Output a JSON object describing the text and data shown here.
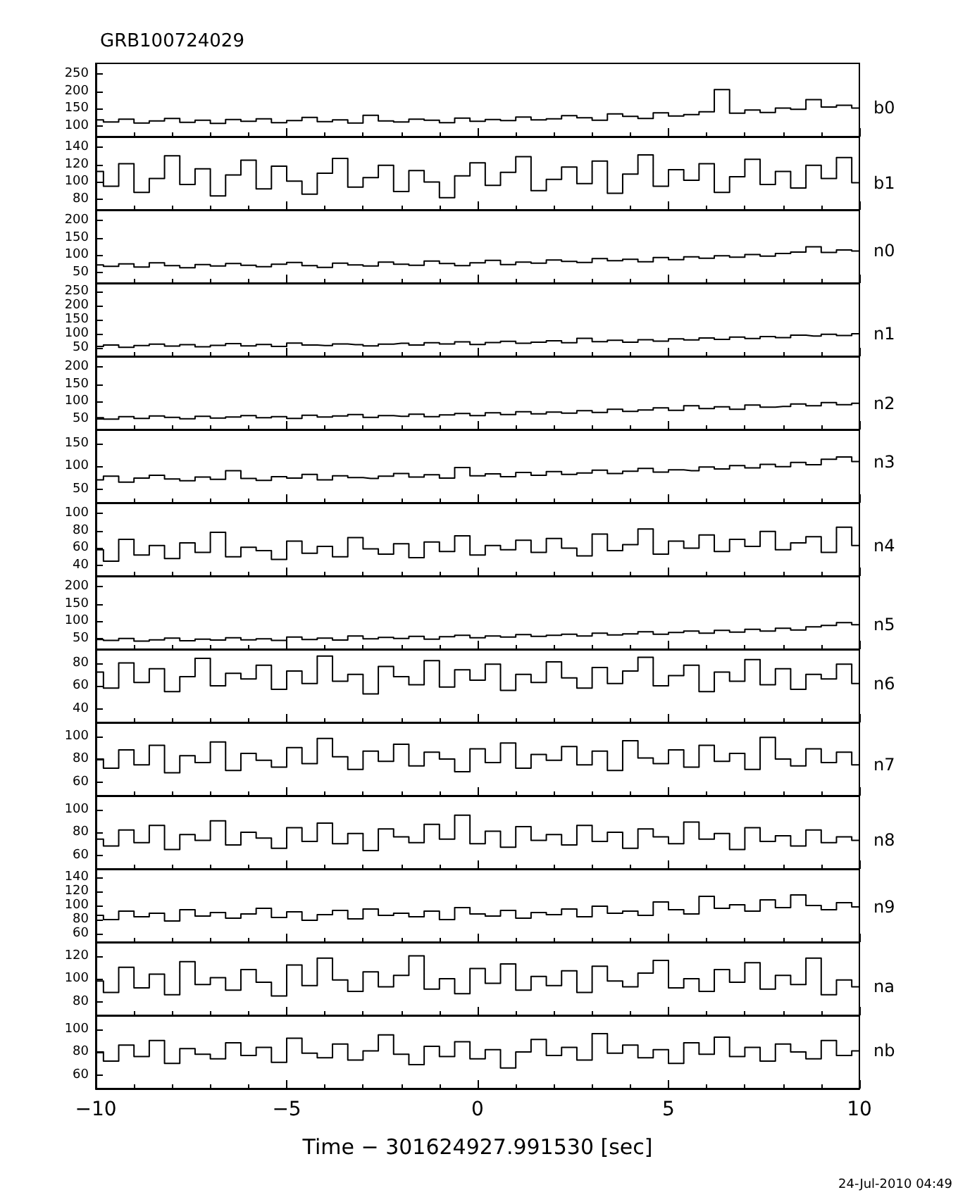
{
  "chart_data": [
    {
      "type": "step",
      "title": "GRB100724029",
      "x": [
        -10,
        -9.6,
        -9.2,
        -8.8,
        -8.4,
        -8,
        -7.6,
        -7.2,
        -6.8,
        -6.4,
        -6,
        -5.6,
        -5.2,
        -4.8,
        -4.4,
        -4,
        -3.6,
        -3.2,
        -2.8,
        -2.4,
        -2,
        -1.6,
        -1.2,
        -0.8,
        -0.4,
        0,
        0.4,
        0.8,
        1.2,
        1.6,
        2,
        2.4,
        2.8,
        3.2,
        3.6,
        4,
        4.4,
        4.8,
        5.2,
        5.6,
        6,
        6.4,
        6.8,
        7.2,
        7.6,
        8,
        8.4,
        8.8,
        9.2,
        9.6,
        10
      ],
      "xlim": [
        -10,
        10
      ],
      "xticks": [
        -10,
        -5,
        0,
        5,
        10
      ],
      "ylim": [
        70,
        280
      ],
      "yticks": [
        100,
        150,
        200,
        250
      ],
      "tick_labels": "y",
      "series": [
        {
          "name": "b0",
          "color": "#000000",
          "values": [
            118,
            112,
            120,
            109,
            115,
            122,
            111,
            117,
            108,
            119,
            114,
            121,
            110,
            116,
            125,
            113,
            118,
            109,
            131,
            115,
            112,
            120,
            117,
            110,
            123,
            114,
            119,
            116,
            126,
            118,
            121,
            130,
            124,
            117,
            135,
            128,
            122,
            138,
            129,
            133,
            141,
            205,
            137,
            146,
            139,
            152,
            148,
            176,
            155,
            160,
            152
          ]
        }
      ]
    },
    {
      "type": "step",
      "x": [
        -10,
        -9.6,
        -9.2,
        -8.8,
        -8.4,
        -8,
        -7.6,
        -7.2,
        -6.8,
        -6.4,
        -6,
        -5.6,
        -5.2,
        -4.8,
        -4.4,
        -4,
        -3.6,
        -3.2,
        -2.8,
        -2.4,
        -2,
        -1.6,
        -1.2,
        -0.8,
        -0.4,
        0,
        0.4,
        0.8,
        1.2,
        1.6,
        2,
        2.4,
        2.8,
        3.2,
        3.6,
        4,
        4.4,
        4.8,
        5.2,
        5.6,
        6,
        6.4,
        6.8,
        7.2,
        7.6,
        8,
        8.4,
        8.8,
        9.2,
        9.6,
        10
      ],
      "xlim": [
        -10,
        10
      ],
      "xticks": [
        -10,
        -5,
        0,
        5,
        10
      ],
      "ylim": [
        68,
        152
      ],
      "yticks": [
        80,
        100,
        120,
        140
      ],
      "tick_labels": "y",
      "series": [
        {
          "name": "b1",
          "color": "#000000",
          "values": [
            112,
            95,
            121,
            88,
            104,
            130,
            97,
            115,
            84,
            108,
            125,
            92,
            118,
            101,
            86,
            110,
            127,
            94,
            105,
            119,
            89,
            113,
            100,
            82,
            107,
            122,
            96,
            111,
            129,
            90,
            103,
            117,
            98,
            124,
            87,
            109,
            131,
            95,
            114,
            102,
            121,
            88,
            106,
            126,
            97,
            112,
            93,
            119,
            104,
            128,
            99
          ]
        }
      ]
    },
    {
      "type": "step",
      "x": [
        -10,
        -9.6,
        -9.2,
        -8.8,
        -8.4,
        -8,
        -7.6,
        -7.2,
        -6.8,
        -6.4,
        -6,
        -5.6,
        -5.2,
        -4.8,
        -4.4,
        -4,
        -3.6,
        -3.2,
        -2.8,
        -2.4,
        -2,
        -1.6,
        -1.2,
        -0.8,
        -0.4,
        0,
        0.4,
        0.8,
        1.2,
        1.6,
        2,
        2.4,
        2.8,
        3.2,
        3.6,
        4,
        4.4,
        4.8,
        5.2,
        5.6,
        6,
        6.4,
        6.8,
        7.2,
        7.6,
        8,
        8.4,
        8.8,
        9.2,
        9.6,
        10
      ],
      "xlim": [
        -10,
        10
      ],
      "xticks": [
        -10,
        -5,
        0,
        5,
        10
      ],
      "ylim": [
        20,
        230
      ],
      "yticks": [
        50,
        100,
        150,
        200
      ],
      "tick_labels": "y",
      "series": [
        {
          "name": "n0",
          "color": "#000000",
          "values": [
            72,
            68,
            75,
            66,
            78,
            70,
            64,
            73,
            69,
            76,
            71,
            67,
            74,
            79,
            70,
            65,
            77,
            72,
            69,
            80,
            74,
            71,
            83,
            76,
            70,
            78,
            85,
            73,
            80,
            77,
            86,
            82,
            79,
            90,
            84,
            88,
            81,
            93,
            87,
            95,
            91,
            98,
            94,
            102,
            97,
            105,
            109,
            124,
            108,
            115,
            112
          ]
        }
      ]
    },
    {
      "type": "step",
      "x": [
        -10,
        -9.6,
        -9.2,
        -8.8,
        -8.4,
        -8,
        -7.6,
        -7.2,
        -6.8,
        -6.4,
        -6,
        -5.6,
        -5.2,
        -4.8,
        -4.4,
        -4,
        -3.6,
        -3.2,
        -2.8,
        -2.4,
        -2,
        -1.6,
        -1.2,
        -0.8,
        -0.4,
        0,
        0.4,
        0.8,
        1.2,
        1.6,
        2,
        2.4,
        2.8,
        3.2,
        3.6,
        4,
        4.4,
        4.8,
        5.2,
        5.6,
        6,
        6.4,
        6.8,
        7.2,
        7.6,
        8,
        8.4,
        8.8,
        9.2,
        9.6,
        10
      ],
      "xlim": [
        -10,
        10
      ],
      "xticks": [
        -10,
        -5,
        0,
        5,
        10
      ],
      "ylim": [
        20,
        280
      ],
      "yticks": [
        50,
        100,
        150,
        200,
        250
      ],
      "tick_labels": "y",
      "series": [
        {
          "name": "n1",
          "color": "#000000",
          "values": [
            55,
            60,
            52,
            58,
            63,
            56,
            61,
            54,
            59,
            65,
            57,
            62,
            55,
            67,
            60,
            58,
            64,
            61,
            57,
            63,
            66,
            60,
            68,
            64,
            71,
            62,
            69,
            73,
            66,
            70,
            75,
            68,
            84,
            72,
            77,
            70,
            79,
            74,
            82,
            78,
            85,
            80,
            88,
            83,
            90,
            86,
            95,
            92,
            98,
            94,
            100
          ]
        }
      ]
    },
    {
      "type": "step",
      "x": [
        -10,
        -9.6,
        -9.2,
        -8.8,
        -8.4,
        -8,
        -7.6,
        -7.2,
        -6.8,
        -6.4,
        -6,
        -5.6,
        -5.2,
        -4.8,
        -4.4,
        -4,
        -3.6,
        -3.2,
        -2.8,
        -2.4,
        -2,
        -1.6,
        -1.2,
        -0.8,
        -0.4,
        0,
        0.4,
        0.8,
        1.2,
        1.6,
        2,
        2.4,
        2.8,
        3.2,
        3.6,
        4,
        4.4,
        4.8,
        5.2,
        5.6,
        6,
        6.4,
        6.8,
        7.2,
        7.6,
        8,
        8.4,
        8.8,
        9.2,
        9.6,
        10
      ],
      "xlim": [
        -10,
        10
      ],
      "xticks": [
        -10,
        -5,
        0,
        5,
        10
      ],
      "ylim": [
        20,
        230
      ],
      "yticks": [
        50,
        100,
        150,
        200
      ],
      "tick_labels": "y",
      "series": [
        {
          "name": "n2",
          "color": "#000000",
          "values": [
            54,
            50,
            57,
            52,
            59,
            55,
            51,
            58,
            53,
            56,
            60,
            54,
            57,
            52,
            61,
            56,
            59,
            63,
            55,
            60,
            58,
            64,
            57,
            62,
            66,
            60,
            68,
            63,
            71,
            65,
            70,
            67,
            74,
            69,
            78,
            72,
            76,
            82,
            75,
            88,
            80,
            85,
            78,
            90,
            84,
            86,
            93,
            88,
            97,
            91,
            95
          ]
        }
      ]
    },
    {
      "type": "step",
      "x": [
        -10,
        -9.6,
        -9.2,
        -8.8,
        -8.4,
        -8,
        -7.6,
        -7.2,
        -6.8,
        -6.4,
        -6,
        -5.6,
        -5.2,
        -4.8,
        -4.4,
        -4,
        -3.6,
        -3.2,
        -2.8,
        -2.4,
        -2,
        -1.6,
        -1.2,
        -0.8,
        -0.4,
        0,
        0.4,
        0.8,
        1.2,
        1.6,
        2,
        2.4,
        2.8,
        3.2,
        3.6,
        4,
        4.4,
        4.8,
        5.2,
        5.6,
        6,
        6.4,
        6.8,
        7.2,
        7.6,
        8,
        8.4,
        8.8,
        9.2,
        9.6,
        10
      ],
      "xlim": [
        -10,
        10
      ],
      "xticks": [
        -10,
        -5,
        0,
        5,
        10
      ],
      "ylim": [
        20,
        180
      ],
      "yticks": [
        50,
        100,
        150
      ],
      "tick_labels": "y",
      "series": [
        {
          "name": "n3",
          "color": "#000000",
          "values": [
            70,
            78,
            65,
            74,
            80,
            72,
            68,
            76,
            71,
            90,
            73,
            69,
            77,
            74,
            82,
            70,
            79,
            75,
            73,
            78,
            84,
            76,
            81,
            74,
            97,
            79,
            83,
            77,
            86,
            80,
            88,
            82,
            85,
            91,
            84,
            89,
            95,
            87,
            92,
            90,
            98,
            94,
            101,
            96,
            104,
            99,
            108,
            103,
            115,
            120,
            110
          ]
        }
      ]
    },
    {
      "type": "step",
      "x": [
        -10,
        -9.6,
        -9.2,
        -8.8,
        -8.4,
        -8,
        -7.6,
        -7.2,
        -6.8,
        -6.4,
        -6,
        -5.6,
        -5.2,
        -4.8,
        -4.4,
        -4,
        -3.6,
        -3.2,
        -2.8,
        -2.4,
        -2,
        -1.6,
        -1.2,
        -0.8,
        -0.4,
        0,
        0.4,
        0.8,
        1.2,
        1.6,
        2,
        2.4,
        2.8,
        3.2,
        3.6,
        4,
        4.4,
        4.8,
        5.2,
        5.6,
        6,
        6.4,
        6.8,
        7.2,
        7.6,
        8,
        8.4,
        8.8,
        9.2,
        9.6,
        10
      ],
      "xlim": [
        -10,
        10
      ],
      "xticks": [
        -10,
        -5,
        0,
        5,
        10
      ],
      "ylim": [
        28,
        112
      ],
      "yticks": [
        40,
        60,
        80,
        100
      ],
      "tick_labels": "y",
      "series": [
        {
          "name": "n4",
          "color": "#000000",
          "values": [
            58,
            45,
            70,
            52,
            63,
            48,
            66,
            55,
            78,
            50,
            61,
            57,
            47,
            68,
            54,
            62,
            50,
            72,
            59,
            53,
            65,
            49,
            67,
            56,
            74,
            52,
            63,
            58,
            69,
            55,
            71,
            60,
            51,
            76,
            57,
            64,
            82,
            53,
            68,
            60,
            75,
            56,
            70,
            62,
            79,
            58,
            66,
            73,
            55,
            84,
            63
          ]
        }
      ]
    },
    {
      "type": "step",
      "x": [
        -10,
        -9.6,
        -9.2,
        -8.8,
        -8.4,
        -8,
        -7.6,
        -7.2,
        -6.8,
        -6.4,
        -6,
        -5.6,
        -5.2,
        -4.8,
        -4.4,
        -4,
        -3.6,
        -3.2,
        -2.8,
        -2.4,
        -2,
        -1.6,
        -1.2,
        -0.8,
        -0.4,
        0,
        0.4,
        0.8,
        1.2,
        1.6,
        2,
        2.4,
        2.8,
        3.2,
        3.6,
        4,
        4.4,
        4.8,
        5.2,
        5.6,
        6,
        6.4,
        6.8,
        7.2,
        7.6,
        8,
        8.4,
        8.8,
        9.2,
        9.6,
        10
      ],
      "xlim": [
        -10,
        10
      ],
      "xticks": [
        -10,
        -5,
        0,
        5,
        10
      ],
      "ylim": [
        20,
        230
      ],
      "yticks": [
        50,
        100,
        150,
        200
      ],
      "tick_labels": "y",
      "series": [
        {
          "name": "n5",
          "color": "#000000",
          "values": [
            48,
            45,
            51,
            43,
            47,
            52,
            44,
            49,
            46,
            53,
            47,
            50,
            45,
            55,
            48,
            52,
            46,
            58,
            50,
            54,
            51,
            57,
            49,
            56,
            60,
            53,
            58,
            55,
            62,
            57,
            60,
            63,
            58,
            66,
            61,
            64,
            70,
            63,
            68,
            72,
            66,
            74,
            69,
            77,
            72,
            80,
            75,
            84,
            88,
            96,
            90
          ]
        }
      ]
    },
    {
      "type": "step",
      "x": [
        -10,
        -9.6,
        -9.2,
        -8.8,
        -8.4,
        -8,
        -7.6,
        -7.2,
        -6.8,
        -6.4,
        -6,
        -5.6,
        -5.2,
        -4.8,
        -4.4,
        -4,
        -3.6,
        -3.2,
        -2.8,
        -2.4,
        -2,
        -1.6,
        -1.2,
        -0.8,
        -0.4,
        0,
        0.4,
        0.8,
        1.2,
        1.6,
        2,
        2.4,
        2.8,
        3.2,
        3.6,
        4,
        4.4,
        4.8,
        5.2,
        5.6,
        6,
        6.4,
        6.8,
        7.2,
        7.6,
        8,
        8.4,
        8.8,
        9.2,
        9.6,
        10
      ],
      "xlim": [
        -10,
        10
      ],
      "xticks": [
        -10,
        -5,
        0,
        5,
        10
      ],
      "ylim": [
        28,
        92
      ],
      "yticks": [
        40,
        60,
        80
      ],
      "tick_labels": "y",
      "series": [
        {
          "name": "n6",
          "color": "#000000",
          "values": [
            72,
            58,
            80,
            63,
            75,
            55,
            68,
            84,
            60,
            71,
            66,
            78,
            57,
            73,
            62,
            86,
            64,
            70,
            53,
            77,
            68,
            61,
            82,
            59,
            74,
            65,
            79,
            56,
            70,
            63,
            81,
            67,
            58,
            76,
            62,
            73,
            85,
            60,
            69,
            78,
            55,
            72,
            64,
            83,
            61,
            75,
            57,
            70,
            66,
            79,
            62
          ]
        }
      ]
    },
    {
      "type": "step",
      "x": [
        -10,
        -9.6,
        -9.2,
        -8.8,
        -8.4,
        -8,
        -7.6,
        -7.2,
        -6.8,
        -6.4,
        -6,
        -5.6,
        -5.2,
        -4.8,
        -4.4,
        -4,
        -3.6,
        -3.2,
        -2.8,
        -2.4,
        -2,
        -1.6,
        -1.2,
        -0.8,
        -0.4,
        0,
        0.4,
        0.8,
        1.2,
        1.6,
        2,
        2.4,
        2.8,
        3.2,
        3.6,
        4,
        4.4,
        4.8,
        5.2,
        5.6,
        6,
        6.4,
        6.8,
        7.2,
        7.6,
        8,
        8.4,
        8.8,
        9.2,
        9.6,
        10
      ],
      "xlim": [
        -10,
        10
      ],
      "xticks": [
        -10,
        -5,
        0,
        5,
        10
      ],
      "ylim": [
        48,
        112
      ],
      "yticks": [
        60,
        80,
        100
      ],
      "tick_labels": "y",
      "series": [
        {
          "name": "n7",
          "color": "#000000",
          "values": [
            80,
            72,
            88,
            75,
            92,
            68,
            83,
            77,
            95,
            70,
            85,
            79,
            73,
            90,
            76,
            98,
            82,
            71,
            87,
            78,
            93,
            74,
            86,
            80,
            69,
            89,
            77,
            94,
            72,
            84,
            79,
            91,
            75,
            87,
            70,
            96,
            81,
            76,
            88,
            73,
            92,
            78,
            85,
            71,
            99,
            80,
            74,
            89,
            77,
            86,
            75
          ]
        }
      ]
    },
    {
      "type": "step",
      "x": [
        -10,
        -9.6,
        -9.2,
        -8.8,
        -8.4,
        -8,
        -7.6,
        -7.2,
        -6.8,
        -6.4,
        -6,
        -5.6,
        -5.2,
        -4.8,
        -4.4,
        -4,
        -3.6,
        -3.2,
        -2.8,
        -2.4,
        -2,
        -1.6,
        -1.2,
        -0.8,
        -0.4,
        0,
        0.4,
        0.8,
        1.2,
        1.6,
        2,
        2.4,
        2.8,
        3.2,
        3.6,
        4,
        4.4,
        4.8,
        5.2,
        5.6,
        6,
        6.4,
        6.8,
        7.2,
        7.6,
        8,
        8.4,
        8.8,
        9.2,
        9.6,
        10
      ],
      "xlim": [
        -10,
        10
      ],
      "xticks": [
        -10,
        -5,
        0,
        5,
        10
      ],
      "ylim": [
        48,
        112
      ],
      "yticks": [
        60,
        80,
        100
      ],
      "tick_labels": "y",
      "series": [
        {
          "name": "n8",
          "color": "#000000",
          "values": [
            74,
            68,
            82,
            71,
            86,
            65,
            78,
            73,
            90,
            69,
            80,
            75,
            66,
            84,
            72,
            88,
            70,
            79,
            64,
            83,
            76,
            71,
            87,
            74,
            95,
            70,
            81,
            67,
            85,
            73,
            78,
            69,
            86,
            72,
            80,
            66,
            83,
            76,
            70,
            89,
            74,
            79,
            65,
            84,
            72,
            77,
            68,
            82,
            71,
            76,
            73
          ]
        }
      ]
    },
    {
      "type": "step",
      "x": [
        -10,
        -9.6,
        -9.2,
        -8.8,
        -8.4,
        -8,
        -7.6,
        -7.2,
        -6.8,
        -6.4,
        -6,
        -5.6,
        -5.2,
        -4.8,
        -4.4,
        -4,
        -3.6,
        -3.2,
        -2.8,
        -2.4,
        -2,
        -1.6,
        -1.2,
        -0.8,
        -0.4,
        0,
        0.4,
        0.8,
        1.2,
        1.6,
        2,
        2.4,
        2.8,
        3.2,
        3.6,
        4,
        4.4,
        4.8,
        5.2,
        5.6,
        6,
        6.4,
        6.8,
        7.2,
        7.6,
        8,
        8.4,
        8.8,
        9.2,
        9.6,
        10
      ],
      "xlim": [
        -10,
        10
      ],
      "xticks": [
        -10,
        -5,
        0,
        5,
        10
      ],
      "ylim": [
        48,
        152
      ],
      "yticks": [
        60,
        80,
        100,
        120,
        140
      ],
      "tick_labels": "y",
      "series": [
        {
          "name": "n9",
          "color": "#000000",
          "values": [
            86,
            80,
            92,
            84,
            89,
            78,
            94,
            85,
            90,
            82,
            88,
            96,
            83,
            91,
            79,
            87,
            93,
            81,
            95,
            86,
            89,
            84,
            92,
            80,
            97,
            88,
            85,
            93,
            82,
            90,
            87,
            95,
            84,
            99,
            89,
            92,
            86,
            105,
            94,
            88,
            113,
            96,
            101,
            92,
            108,
            97,
            115,
            100,
            94,
            104,
            98
          ]
        }
      ]
    },
    {
      "type": "step",
      "x": [
        -10,
        -9.6,
        -9.2,
        -8.8,
        -8.4,
        -8,
        -7.6,
        -7.2,
        -6.8,
        -6.4,
        -6,
        -5.6,
        -5.2,
        -4.8,
        -4.4,
        -4,
        -3.6,
        -3.2,
        -2.8,
        -2.4,
        -2,
        -1.6,
        -1.2,
        -0.8,
        -0.4,
        0,
        0.4,
        0.8,
        1.2,
        1.6,
        2,
        2.4,
        2.8,
        3.2,
        3.6,
        4,
        4.4,
        4.8,
        5.2,
        5.6,
        6,
        6.4,
        6.8,
        7.2,
        7.6,
        8,
        8.4,
        8.8,
        9.2,
        9.6,
        10
      ],
      "xlim": [
        -10,
        10
      ],
      "xticks": [
        -10,
        -5,
        0,
        5,
        10
      ],
      "ylim": [
        68,
        132
      ],
      "yticks": [
        80,
        100,
        120
      ],
      "tick_labels": "y",
      "series": [
        {
          "name": "na",
          "color": "#000000",
          "values": [
            98,
            88,
            110,
            92,
            104,
            86,
            115,
            95,
            101,
            90,
            108,
            97,
            85,
            112,
            94,
            118,
            99,
            89,
            106,
            93,
            103,
            120,
            91,
            100,
            87,
            109,
            96,
            113,
            90,
            102,
            94,
            107,
            88,
            111,
            98,
            93,
            105,
            116,
            92,
            100,
            89,
            108,
            97,
            114,
            91,
            103,
            95,
            118,
            86,
            99,
            93
          ]
        }
      ]
    },
    {
      "type": "step",
      "xlabel": "Time − 301624927.991530 [sec]",
      "annotations": [
        "24-Jul-2010 04:49"
      ],
      "x": [
        -10,
        -9.6,
        -9.2,
        -8.8,
        -8.4,
        -8,
        -7.6,
        -7.2,
        -6.8,
        -6.4,
        -6,
        -5.6,
        -5.2,
        -4.8,
        -4.4,
        -4,
        -3.6,
        -3.2,
        -2.8,
        -2.4,
        -2,
        -1.6,
        -1.2,
        -0.8,
        -0.4,
        0,
        0.4,
        0.8,
        1.2,
        1.6,
        2,
        2.4,
        2.8,
        3.2,
        3.6,
        4,
        4.4,
        4.8,
        5.2,
        5.6,
        6,
        6.4,
        6.8,
        7.2,
        7.6,
        8,
        8.4,
        8.8,
        9.2,
        9.6,
        10
      ],
      "xlim": [
        -10,
        10
      ],
      "xticks": [
        -10,
        -5,
        0,
        5,
        10
      ],
      "ylim": [
        48,
        112
      ],
      "yticks": [
        60,
        80,
        100
      ],
      "series": [
        {
          "name": "nb",
          "color": "#000000",
          "values": [
            80,
            72,
            86,
            76,
            90,
            70,
            83,
            78,
            74,
            88,
            77,
            84,
            71,
            92,
            79,
            75,
            87,
            73,
            81,
            95,
            78,
            69,
            85,
            76,
            89,
            74,
            82,
            66,
            80,
            91,
            77,
            84,
            73,
            96,
            79,
            86,
            75,
            82,
            70,
            88,
            78,
            93,
            76,
            84,
            72,
            87,
            80,
            74,
            90,
            77,
            81
          ]
        }
      ]
    }
  ]
}
